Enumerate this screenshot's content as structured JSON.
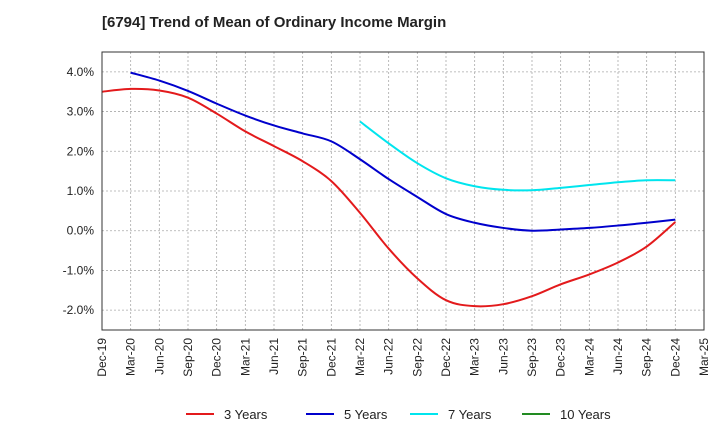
{
  "chart_data": {
    "type": "line",
    "title": "[6794]  Trend of Mean of Ordinary Income Margin",
    "xlabel": "",
    "ylabel": "",
    "x_ticks": [
      "Dec-19",
      "Mar-20",
      "Jun-20",
      "Sep-20",
      "Dec-20",
      "Mar-21",
      "Jun-21",
      "Sep-21",
      "Dec-21",
      "Mar-22",
      "Jun-22",
      "Sep-22",
      "Dec-22",
      "Mar-23",
      "Jun-23",
      "Sep-23",
      "Dec-23",
      "Mar-24",
      "Jun-24",
      "Sep-24",
      "Dec-24",
      "Mar-25"
    ],
    "y_ticks": [
      "4.0%",
      "3.0%",
      "2.0%",
      "1.0%",
      "0.0%",
      "-1.0%",
      "-2.0%"
    ],
    "y_tick_values": [
      4,
      3,
      2,
      1,
      0,
      -1,
      -2
    ],
    "ylim": [
      -2.5,
      4.5
    ],
    "grid": true,
    "legend_position": "bottom",
    "series": [
      {
        "name": "3 Years",
        "color": "#e31a1c",
        "x": [
          "Dec-19",
          "Mar-20",
          "Jun-20",
          "Sep-20",
          "Dec-20",
          "Mar-21",
          "Jun-21",
          "Sep-21",
          "Dec-21",
          "Mar-22",
          "Jun-22",
          "Sep-22",
          "Dec-22",
          "Mar-23",
          "Jun-23",
          "Sep-23",
          "Dec-23",
          "Mar-24",
          "Jun-24",
          "Sep-24",
          "Dec-24"
        ],
        "values": [
          3.5,
          3.57,
          3.53,
          3.35,
          2.95,
          2.5,
          2.13,
          1.75,
          1.25,
          0.45,
          -0.45,
          -1.2,
          -1.75,
          -1.9,
          -1.85,
          -1.65,
          -1.35,
          -1.1,
          -0.8,
          -0.4,
          0.22
        ]
      },
      {
        "name": "5 Years",
        "color": "#0000cc",
        "x": [
          "Mar-20",
          "Jun-20",
          "Sep-20",
          "Dec-20",
          "Mar-21",
          "Jun-21",
          "Sep-21",
          "Dec-21",
          "Mar-22",
          "Jun-22",
          "Sep-22",
          "Dec-22",
          "Mar-23",
          "Jun-23",
          "Sep-23",
          "Dec-23",
          "Mar-24",
          "Jun-24",
          "Sep-24",
          "Dec-24"
        ],
        "values": [
          3.98,
          3.78,
          3.52,
          3.2,
          2.9,
          2.65,
          2.45,
          2.25,
          1.8,
          1.3,
          0.85,
          0.42,
          0.2,
          0.07,
          0.0,
          0.03,
          0.07,
          0.13,
          0.2,
          0.28
        ]
      },
      {
        "name": "7 Years",
        "color": "#00e5ee",
        "x": [
          "Mar-22",
          "Jun-22",
          "Sep-22",
          "Dec-22",
          "Mar-23",
          "Jun-23",
          "Sep-23",
          "Dec-23",
          "Mar-24",
          "Jun-24",
          "Sep-24",
          "Dec-24"
        ],
        "values": [
          2.75,
          2.2,
          1.7,
          1.32,
          1.12,
          1.03,
          1.02,
          1.08,
          1.15,
          1.22,
          1.27,
          1.27
        ]
      },
      {
        "name": "10 Years",
        "color": "#228b22",
        "x": [],
        "values": []
      }
    ]
  }
}
